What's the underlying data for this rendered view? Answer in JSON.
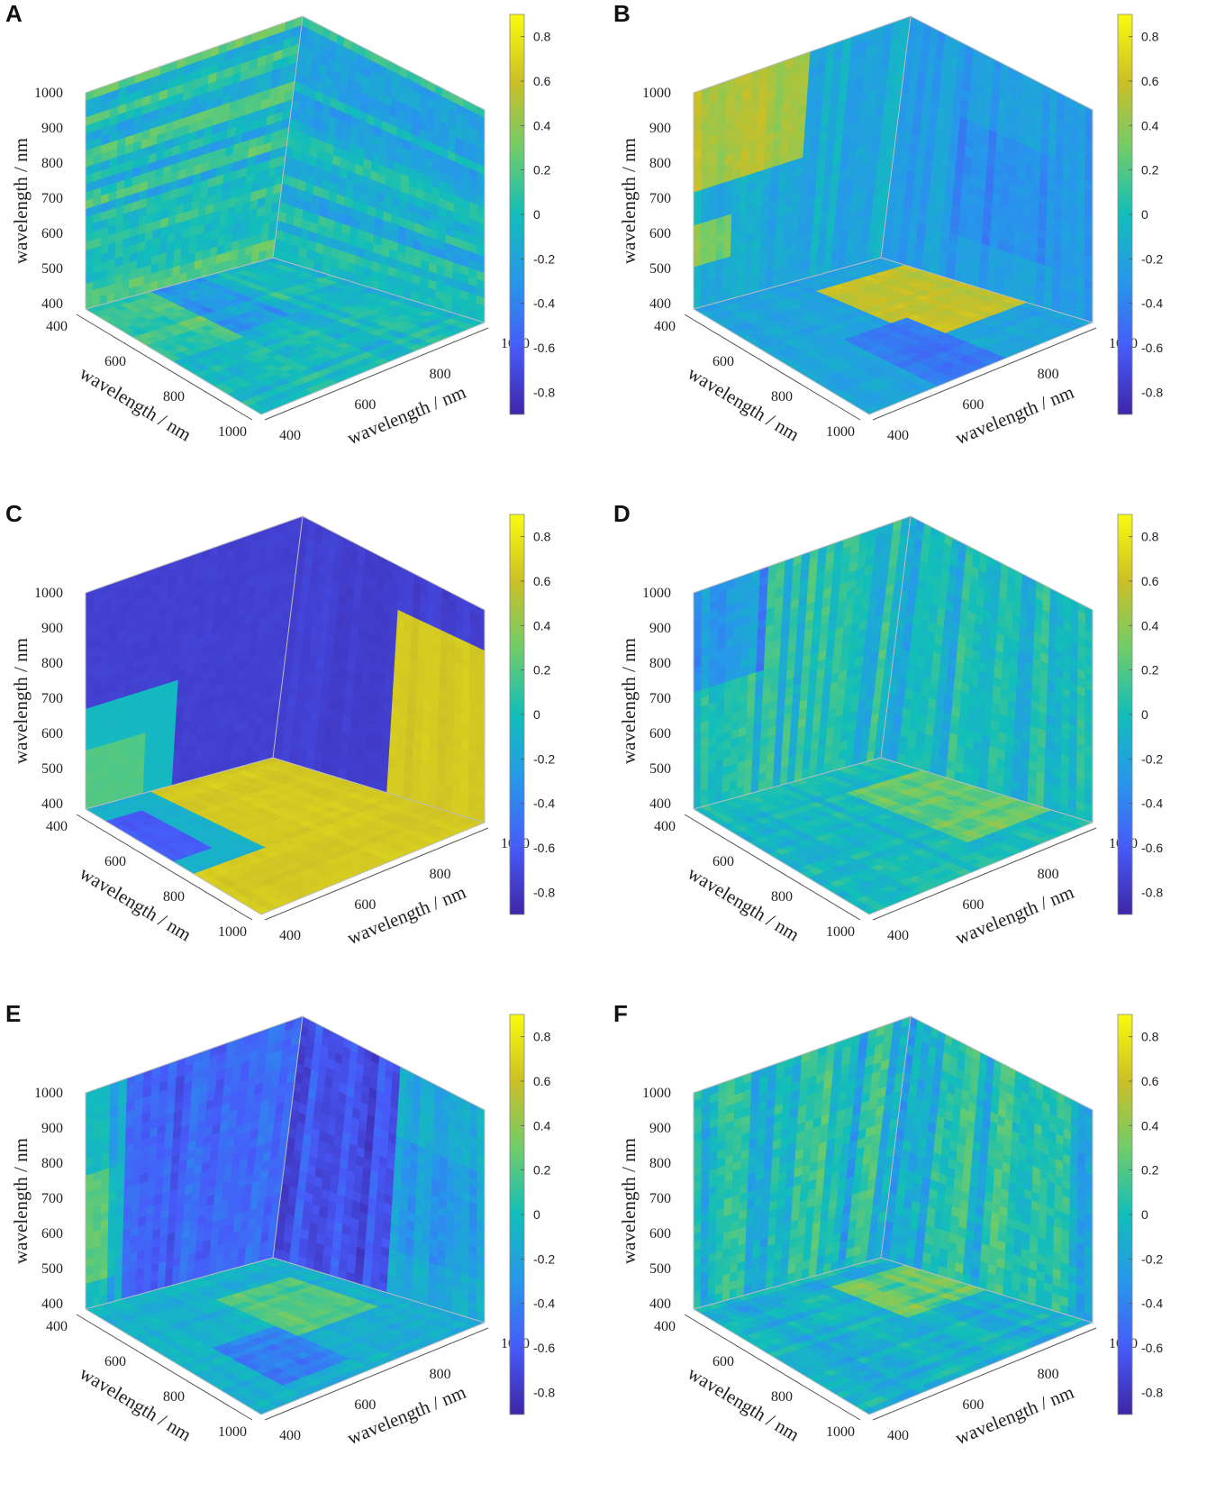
{
  "chart_data": [
    {
      "type": "heatmap",
      "panel": "A",
      "view": "3D cube",
      "xlabel": "wavelength / nm",
      "ylabel": "wavelength / nm",
      "zlabel": "wavelength / nm",
      "x_ticks": [
        "400",
        "600",
        "800",
        "1000"
      ],
      "y_ticks": [
        "400",
        "600",
        "800",
        "1000"
      ],
      "z_ticks": [
        "400",
        "500",
        "600",
        "700",
        "800",
        "900",
        "1000"
      ],
      "colorbar": {
        "ticks": [
          "0.8",
          "0.6",
          "0.4",
          "0.2",
          "0",
          "-0.2",
          "-0.4",
          "-0.6",
          "-0.8"
        ],
        "range": [
          -0.9,
          0.9
        ],
        "colormap": "parula"
      },
      "pattern": "noisy, mostly near 0, horizontal stripes on left face",
      "faces": {
        "left": {
          "base": 0.02,
          "noise": 0.35,
          "stripes": "h",
          "blocks": []
        },
        "right": {
          "base": -0.05,
          "noise": 0.3,
          "stripes": "h",
          "blocks": []
        },
        "top": {
          "base": -0.02,
          "noise": 0.25,
          "stripes": "x",
          "blocks": [
            [
              0.3,
              0.6,
              0.0,
              0.45,
              -0.25
            ],
            [
              0.0,
              0.35,
              0.0,
              0.5,
              0.15
            ]
          ]
        }
      }
    },
    {
      "type": "heatmap",
      "panel": "B",
      "view": "3D cube",
      "xlabel": "wavelength / nm",
      "ylabel": "wavelength / nm",
      "zlabel": "wavelength / nm",
      "x_ticks": [
        "400",
        "600",
        "800",
        "1000"
      ],
      "y_ticks": [
        "400",
        "600",
        "800",
        "1000"
      ],
      "z_ticks": [
        "400",
        "500",
        "600",
        "700",
        "800",
        "900",
        "1000"
      ],
      "colorbar": {
        "ticks": [
          "0.8",
          "0.6",
          "0.4",
          "0.2",
          "0",
          "-0.2",
          "-0.4",
          "-0.6",
          "-0.8"
        ],
        "range": [
          -0.9,
          0.9
        ],
        "colormap": "parula"
      },
      "pattern": "yellow block at 700-1000 nm (top-left), yellow block on floor near 600-800 nm",
      "faces": {
        "left": {
          "base": -0.15,
          "noise": 0.15,
          "stripes": "v",
          "blocks": [
            [
              0.0,
              0.55,
              0.0,
              0.45,
              0.5
            ],
            [
              0.0,
              0.2,
              0.6,
              0.8,
              0.35
            ]
          ]
        },
        "right": {
          "base": -0.25,
          "noise": 0.12,
          "stripes": "v",
          "blocks": [
            [
              0.3,
              0.8,
              0.3,
              0.8,
              -0.35
            ]
          ]
        },
        "top": {
          "base": -0.2,
          "noise": 0.12,
          "stripes": "x",
          "blocks": [
            [
              0.55,
              1.0,
              0.1,
              0.7,
              0.55
            ],
            [
              0.3,
              0.6,
              0.5,
              1.0,
              -0.45
            ]
          ]
        }
      }
    },
    {
      "type": "heatmap",
      "panel": "C",
      "view": "3D cube",
      "xlabel": "wavelength / nm",
      "ylabel": "wavelength / nm",
      "zlabel": "wavelength / nm",
      "x_ticks": [
        "400",
        "600",
        "800",
        "1000"
      ],
      "y_ticks": [
        "400",
        "600",
        "800",
        "1000"
      ],
      "z_ticks": [
        "400",
        "500",
        "600",
        "700",
        "800",
        "900",
        "1000"
      ],
      "colorbar": {
        "ticks": [
          "0.8",
          "0.6",
          "0.4",
          "0.2",
          "0",
          "-0.2",
          "-0.4",
          "-0.6",
          "-0.8"
        ],
        "range": [
          -0.9,
          0.9
        ],
        "colormap": "parula"
      },
      "pattern": "strong negative block on back walls, strong positive (yellow) on right side and floor",
      "faces": {
        "left": {
          "base": -0.75,
          "noise": 0.05,
          "stripes": "none",
          "blocks": [
            [
              0.0,
              0.45,
              0.55,
              1.0,
              -0.05
            ],
            [
              0.0,
              0.3,
              0.75,
              1.0,
              0.2
            ]
          ]
        },
        "right": {
          "base": -0.75,
          "noise": 0.05,
          "stripes": "v",
          "blocks": [
            [
              0.55,
              1.0,
              0.2,
              1.0,
              0.65
            ]
          ]
        },
        "top": {
          "base": 0.65,
          "noise": 0.05,
          "stripes": "x",
          "blocks": [
            [
              0.0,
              0.35,
              0.0,
              0.6,
              -0.1
            ],
            [
              0.0,
              0.2,
              0.1,
              0.5,
              -0.6
            ]
          ]
        }
      }
    },
    {
      "type": "heatmap",
      "panel": "D",
      "view": "3D cube",
      "xlabel": "wavelength / nm",
      "ylabel": "wavelength / nm",
      "zlabel": "wavelength / nm",
      "x_ticks": [
        "400",
        "600",
        "800",
        "1000"
      ],
      "y_ticks": [
        "400",
        "600",
        "800",
        "1000"
      ],
      "z_ticks": [
        "400",
        "500",
        "600",
        "700",
        "800",
        "900",
        "1000"
      ],
      "colorbar": {
        "ticks": [
          "0.8",
          "0.6",
          "0.4",
          "0.2",
          "0",
          "-0.2",
          "-0.4",
          "-0.6",
          "-0.8"
        ],
        "range": [
          -0.9,
          0.9
        ],
        "colormap": "parula"
      },
      "pattern": "noisy, near 0, slight negative at top-left, positive patch on floor",
      "faces": {
        "left": {
          "base": 0.0,
          "noise": 0.25,
          "stripes": "v",
          "blocks": [
            [
              0.0,
              0.35,
              0.0,
              0.45,
              -0.3
            ]
          ]
        },
        "right": {
          "base": -0.05,
          "noise": 0.25,
          "stripes": "v",
          "blocks": []
        },
        "top": {
          "base": -0.05,
          "noise": 0.2,
          "stripes": "x",
          "blocks": [
            [
              0.6,
              1.0,
              0.2,
              0.8,
              0.25
            ]
          ]
        }
      }
    },
    {
      "type": "heatmap",
      "panel": "E",
      "view": "3D cube",
      "xlabel": "wavelength / nm",
      "ylabel": "wavelength / nm",
      "zlabel": "wavelength / nm",
      "x_ticks": [
        "400",
        "600",
        "800",
        "1000"
      ],
      "y_ticks": [
        "400",
        "600",
        "800",
        "1000"
      ],
      "z_ticks": [
        "400",
        "500",
        "600",
        "700",
        "800",
        "900",
        "1000"
      ],
      "colorbar": {
        "ticks": [
          "0.8",
          "0.6",
          "0.4",
          "0.2",
          "0",
          "-0.2",
          "-0.4",
          "-0.6",
          "-0.8"
        ],
        "range": [
          -0.9,
          0.9
        ],
        "colormap": "parula"
      },
      "pattern": "large negative region in middle of back walls, mixed blue/green elsewhere",
      "faces": {
        "left": {
          "base": -0.15,
          "noise": 0.2,
          "stripes": "v",
          "blocks": [
            [
              0.2,
              1.0,
              0.0,
              1.0,
              -0.6
            ],
            [
              0.0,
              0.15,
              0.4,
              0.9,
              0.1
            ]
          ]
        },
        "right": {
          "base": -0.2,
          "noise": 0.2,
          "stripes": "v",
          "blocks": [
            [
              0.0,
              0.55,
              0.0,
              1.0,
              -0.65
            ],
            [
              0.55,
              1.0,
              0.3,
              0.8,
              -0.3
            ]
          ]
        },
        "top": {
          "base": -0.1,
          "noise": 0.15,
          "stripes": "x",
          "blocks": [
            [
              0.5,
              0.9,
              0.2,
              0.6,
              0.2
            ],
            [
              0.2,
              0.5,
              0.5,
              0.9,
              -0.4
            ]
          ]
        }
      }
    },
    {
      "type": "heatmap",
      "panel": "F",
      "view": "3D cube",
      "xlabel": "wavelength / nm",
      "ylabel": "wavelength / nm",
      "zlabel": "wavelength / nm",
      "x_ticks": [
        "400",
        "600",
        "800",
        "1000"
      ],
      "y_ticks": [
        "400",
        "600",
        "800",
        "1000"
      ],
      "z_ticks": [
        "400",
        "500",
        "600",
        "700",
        "800",
        "900",
        "1000"
      ],
      "colorbar": {
        "ticks": [
          "0.8",
          "0.6",
          "0.4",
          "0.2",
          "0",
          "-0.2",
          "-0.4",
          "-0.6",
          "-0.8"
        ],
        "range": [
          -0.9,
          0.9
        ],
        "colormap": "parula"
      },
      "pattern": "very noisy vertical stripes, mostly near -0.1 to 0.2",
      "faces": {
        "left": {
          "base": -0.05,
          "noise": 0.35,
          "stripes": "v",
          "blocks": []
        },
        "right": {
          "base": -0.05,
          "noise": 0.35,
          "stripes": "v",
          "blocks": []
        },
        "top": {
          "base": -0.1,
          "noise": 0.25,
          "stripes": "x",
          "blocks": [
            [
              0.6,
              1.0,
              0.1,
              0.5,
              0.25
            ]
          ]
        }
      }
    }
  ]
}
